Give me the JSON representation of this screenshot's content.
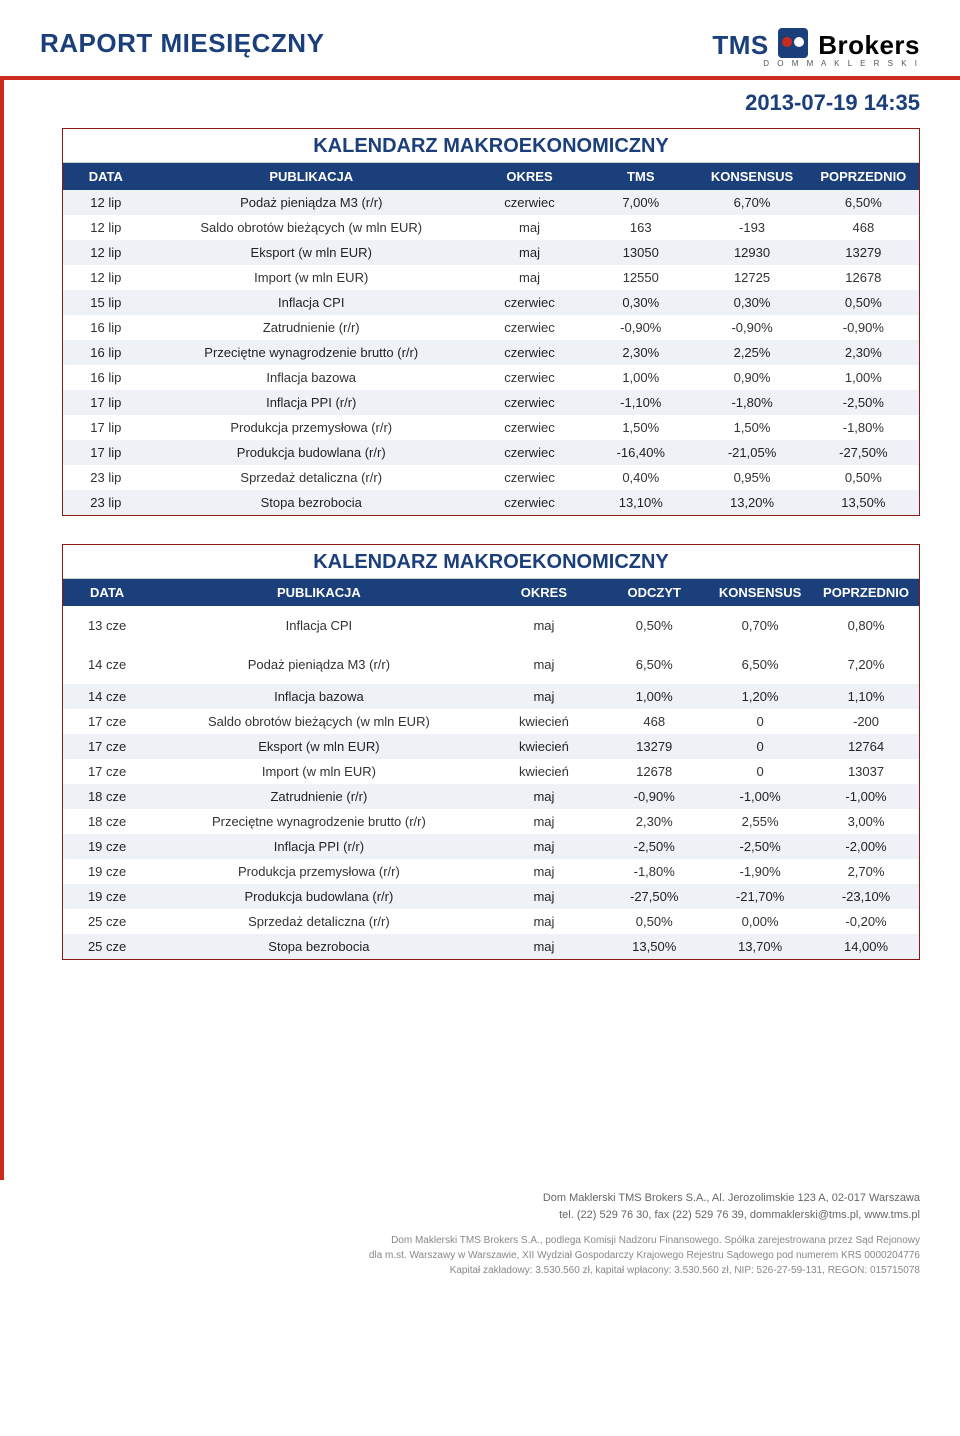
{
  "header": {
    "report_title": "RAPORT MIESIĘCZNY",
    "logo_tms": "TMS",
    "logo_brokers": "Brokers",
    "logo_sub": "D O M   M A K L E R S K I",
    "datetime": "2013-07-19 14:35"
  },
  "table1": {
    "title": "KALENDARZ MAKROEKONOMICZNY",
    "columns": [
      "DATA",
      "PUBLIKACJA",
      "OKRES",
      "TMS",
      "KONSENSUS",
      "POPRZEDNIO"
    ],
    "rows": [
      {
        "shade": true,
        "c": [
          "12 lip",
          "Podaż pieniądza M3 (r/r)",
          "czerwiec",
          "7,00%",
          "6,70%",
          "6,50%"
        ]
      },
      {
        "shade": false,
        "c": [
          "12 lip",
          "Saldo obrotów bieżących (w mln EUR)",
          "maj",
          "163",
          "-193",
          "468"
        ]
      },
      {
        "shade": true,
        "c": [
          "12 lip",
          "Eksport (w mln EUR)",
          "maj",
          "13050",
          "12930",
          "13279"
        ]
      },
      {
        "shade": false,
        "c": [
          "12 lip",
          "Import (w mln EUR)",
          "maj",
          "12550",
          "12725",
          "12678"
        ]
      },
      {
        "shade": true,
        "c": [
          "15 lip",
          "Inflacja CPI",
          "czerwiec",
          "0,30%",
          "0,30%",
          "0,50%"
        ]
      },
      {
        "shade": false,
        "c": [
          "16 lip",
          "Zatrudnienie (r/r)",
          "czerwiec",
          "-0,90%",
          "-0,90%",
          "-0,90%"
        ]
      },
      {
        "shade": true,
        "c": [
          "16 lip",
          "Przeciętne wynagrodzenie brutto (r/r)",
          "czerwiec",
          "2,30%",
          "2,25%",
          "2,30%"
        ]
      },
      {
        "shade": false,
        "c": [
          "16 lip",
          "Inflacja bazowa",
          "czerwiec",
          "1,00%",
          "0,90%",
          "1,00%"
        ]
      },
      {
        "shade": true,
        "c": [
          "17 lip",
          "Inflacja PPI (r/r)",
          "czerwiec",
          "-1,10%",
          "-1,80%",
          "-2,50%"
        ]
      },
      {
        "shade": false,
        "c": [
          "17 lip",
          "Produkcja przemysłowa (r/r)",
          "czerwiec",
          "1,50%",
          "1,50%",
          "-1,80%"
        ]
      },
      {
        "shade": true,
        "c": [
          "17 lip",
          "Produkcja budowlana (r/r)",
          "czerwiec",
          "-16,40%",
          "-21,05%",
          "-27,50%"
        ]
      },
      {
        "shade": false,
        "c": [
          "23 lip",
          "Sprzedaż detaliczna (r/r)",
          "czerwiec",
          "0,40%",
          "0,95%",
          "0,50%"
        ]
      },
      {
        "shade": true,
        "c": [
          "23 lip",
          "Stopa bezrobocia",
          "czerwiec",
          "13,10%",
          "13,20%",
          "13,50%"
        ]
      }
    ]
  },
  "table2": {
    "title": "KALENDARZ MAKROEKONOMICZNY",
    "columns": [
      "DATA",
      "PUBLIKACJA",
      "OKRES",
      "ODCZYT",
      "KONSENSUS",
      "POPRZEDNIO"
    ],
    "rows": [
      {
        "shade": false,
        "pad": true,
        "c": [
          "13 cze",
          "Inflacja CPI",
          "maj",
          "0,50%",
          "0,70%",
          "0,80%"
        ]
      },
      {
        "shade": false,
        "pad": true,
        "c": [
          "14 cze",
          "Podaż pieniądza M3 (r/r)",
          "maj",
          "6,50%",
          "6,50%",
          "7,20%"
        ]
      },
      {
        "shade": true,
        "c": [
          "14 cze",
          "Inflacja bazowa",
          "maj",
          "1,00%",
          "1,20%",
          "1,10%"
        ]
      },
      {
        "shade": false,
        "c": [
          "17 cze",
          "Saldo obrotów bieżących (w mln EUR)",
          "kwiecień",
          "468",
          "0",
          "-200"
        ]
      },
      {
        "shade": true,
        "c": [
          "17 cze",
          "Eksport (w mln EUR)",
          "kwiecień",
          "13279",
          "0",
          "12764"
        ]
      },
      {
        "shade": false,
        "c": [
          "17 cze",
          "Import (w mln EUR)",
          "kwiecień",
          "12678",
          "0",
          "13037"
        ]
      },
      {
        "shade": true,
        "c": [
          "18 cze",
          "Zatrudnienie (r/r)",
          "maj",
          "-0,90%",
          "-1,00%",
          "-1,00%"
        ]
      },
      {
        "shade": false,
        "c": [
          "18 cze",
          "Przeciętne wynagrodzenie brutto (r/r)",
          "maj",
          "2,30%",
          "2,55%",
          "3,00%"
        ]
      },
      {
        "shade": true,
        "c": [
          "19 cze",
          "Inflacja PPI (r/r)",
          "maj",
          "-2,50%",
          "-2,50%",
          "-2,00%"
        ]
      },
      {
        "shade": false,
        "c": [
          "19 cze",
          "Produkcja przemysłowa (r/r)",
          "maj",
          "-1,80%",
          "-1,90%",
          "2,70%"
        ]
      },
      {
        "shade": true,
        "c": [
          "19 cze",
          "Produkcja budowlana (r/r)",
          "maj",
          "-27,50%",
          "-21,70%",
          "-23,10%"
        ]
      },
      {
        "shade": false,
        "c": [
          "25 cze",
          "Sprzedaż detaliczna (r/r)",
          "maj",
          "0,50%",
          "0,00%",
          "-0,20%"
        ]
      },
      {
        "shade": true,
        "c": [
          "25 cze",
          "Stopa bezrobocia",
          "maj",
          "13,50%",
          "13,70%",
          "14,00%"
        ]
      }
    ]
  },
  "footer": {
    "line1": "Dom Maklerski TMS Brokers S.A., Al. Jerozolimskie 123 A, 02-017 Warszawa",
    "line2": "tel. (22) 529 76 30, fax (22) 529 76 39, dommaklerski@tms.pl, www.tms.pl",
    "line3": "Dom Maklerski TMS Brokers S.A., podlega Komisji Nadzoru Finansowego. Spółka zarejestrowana przez Sąd Rejonowy",
    "line4": "dla m.st. Warszawy w Warszawie, XII Wydział Gospodarczy Krajowego Rejestru Sądowego pod numerem KRS 0000204776",
    "line5": "Kapitał zakładowy: 3.530.560 zł, kapitał wpłacony: 3.530.560 zł, NIP: 526-27-59-131, REGON: 015715078"
  }
}
